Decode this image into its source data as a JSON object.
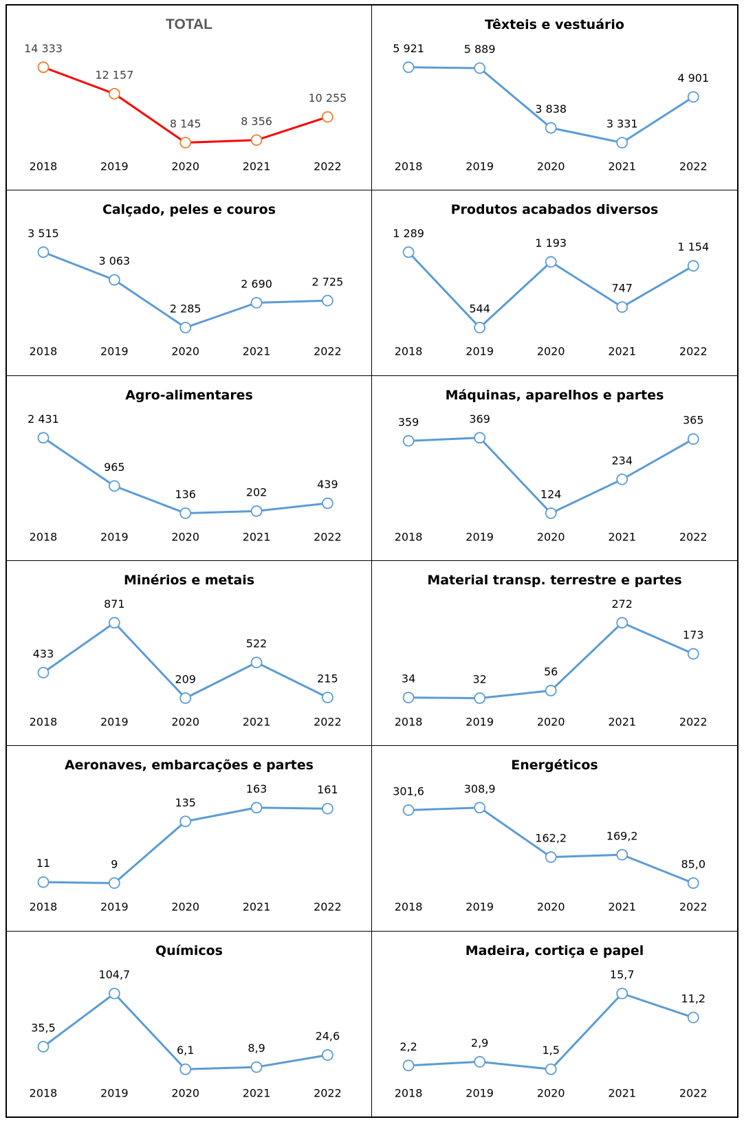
{
  "chart_data": [
    {
      "type": "line",
      "title": "TOTAL",
      "x": [
        "2018",
        "2019",
        "2020",
        "2021",
        "2022"
      ],
      "values": [
        14333,
        12157,
        8145,
        8356,
        10255
      ],
      "labels": [
        "14 333",
        "12 157",
        "8 145",
        "8 356",
        "10 255"
      ],
      "line_color": "#ff0000",
      "marker_color": "#ed7d31"
    },
    {
      "type": "line",
      "title": "Têxteis e vestuário",
      "x": [
        "2018",
        "2019",
        "2020",
        "2021",
        "2022"
      ],
      "values": [
        5921,
        5889,
        3838,
        3331,
        4901
      ],
      "labels": [
        "5 921",
        "5 889",
        "3 838",
        "3 331",
        "4 901"
      ],
      "line_color": "#5b9bd5",
      "marker_color": "#5b9bd5"
    },
    {
      "type": "line",
      "title": "Calçado, peles e couros",
      "x": [
        "2018",
        "2019",
        "2020",
        "2021",
        "2022"
      ],
      "values": [
        3515,
        3063,
        2285,
        2690,
        2725
      ],
      "labels": [
        "3 515",
        "3 063",
        "2 285",
        "2 690",
        "2 725"
      ],
      "line_color": "#5b9bd5",
      "marker_color": "#5b9bd5"
    },
    {
      "type": "line",
      "title": "Produtos acabados diversos",
      "x": [
        "2018",
        "2019",
        "2020",
        "2021",
        "2022"
      ],
      "values": [
        1289,
        544,
        1193,
        747,
        1154
      ],
      "labels": [
        "1 289",
        "544",
        "1 193",
        "747",
        "1 154"
      ],
      "line_color": "#5b9bd5",
      "marker_color": "#5b9bd5"
    },
    {
      "type": "line",
      "title": "Agro-alimentares",
      "x": [
        "2018",
        "2019",
        "2020",
        "2021",
        "2022"
      ],
      "values": [
        2431,
        965,
        136,
        202,
        439
      ],
      "labels": [
        "2 431",
        "965",
        "136",
        "202",
        "439"
      ],
      "line_color": "#5b9bd5",
      "marker_color": "#5b9bd5"
    },
    {
      "type": "line",
      "title": "Máquinas, aparelhos e partes",
      "x": [
        "2018",
        "2019",
        "2020",
        "2021",
        "2022"
      ],
      "values": [
        359,
        369,
        124,
        234,
        365
      ],
      "labels": [
        "359",
        "369",
        "124",
        "234",
        "365"
      ],
      "line_color": "#5b9bd5",
      "marker_color": "#5b9bd5"
    },
    {
      "type": "line",
      "title": "Minérios e metais",
      "x": [
        "2018",
        "2019",
        "2020",
        "2021",
        "2022"
      ],
      "values": [
        433,
        871,
        209,
        522,
        215
      ],
      "labels": [
        "433",
        "871",
        "209",
        "522",
        "215"
      ],
      "line_color": "#5b9bd5",
      "marker_color": "#5b9bd5"
    },
    {
      "type": "line",
      "title": "Material transp. terrestre e partes",
      "x": [
        "2018",
        "2019",
        "2020",
        "2021",
        "2022"
      ],
      "values": [
        34,
        32,
        56,
        272,
        173
      ],
      "labels": [
        "34",
        "32",
        "56",
        "272",
        "173"
      ],
      "line_color": "#5b9bd5",
      "marker_color": "#5b9bd5"
    },
    {
      "type": "line",
      "title": "Aeronaves, embarcações e partes",
      "x": [
        "2018",
        "2019",
        "2020",
        "2021",
        "2022"
      ],
      "values": [
        11,
        9,
        135,
        163,
        161
      ],
      "labels": [
        "11",
        "9",
        "135",
        "163",
        "161"
      ],
      "line_color": "#5b9bd5",
      "marker_color": "#5b9bd5"
    },
    {
      "type": "line",
      "title": "Energéticos",
      "x": [
        "2018",
        "2019",
        "2020",
        "2021",
        "2022"
      ],
      "values": [
        301.6,
        308.9,
        162.2,
        169.2,
        85.0
      ],
      "labels": [
        "301,6",
        "308,9",
        "162,2",
        "169,2",
        "85,0"
      ],
      "line_color": "#5b9bd5",
      "marker_color": "#5b9bd5"
    },
    {
      "type": "line",
      "title": "Químicos",
      "x": [
        "2018",
        "2019",
        "2020",
        "2021",
        "2022"
      ],
      "values": [
        35.5,
        104.7,
        6.1,
        8.9,
        24.6
      ],
      "labels": [
        "35,5",
        "104,7",
        "6,1",
        "8,9",
        "24,6"
      ],
      "line_color": "#5b9bd5",
      "marker_color": "#5b9bd5"
    },
    {
      "type": "line",
      "title": "Madeira, cortiça e papel",
      "x": [
        "2018",
        "2019",
        "2020",
        "2021",
        "2022"
      ],
      "values": [
        2.2,
        2.9,
        1.5,
        15.7,
        11.2
      ],
      "labels": [
        "2,2",
        "2,9",
        "1,5",
        "15,7",
        "11,2"
      ],
      "line_color": "#5b9bd5",
      "marker_color": "#5b9bd5"
    }
  ]
}
